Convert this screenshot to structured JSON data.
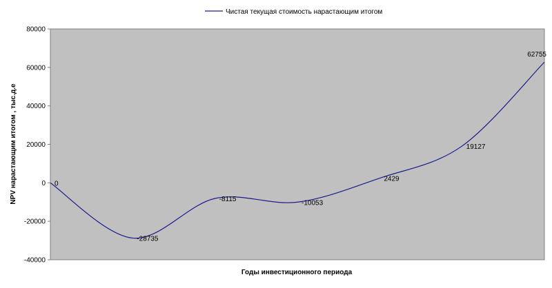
{
  "chart_data": {
    "type": "line",
    "xlabel": "Годы инвестиционного периода",
    "ylabel": "NPV нарастающим итогом , тыс.д.е",
    "ylim": [
      -40000,
      80000
    ],
    "yticks": [
      -40000,
      -20000,
      0,
      20000,
      40000,
      60000,
      80000
    ],
    "ytick_labels": [
      "-40000",
      "-20000",
      "0",
      "20000",
      "40000",
      "60000",
      "80000"
    ],
    "grid": false,
    "legend_position": "top-center",
    "smooth": true,
    "x": [
      0,
      1,
      2,
      3,
      4,
      5,
      6
    ],
    "series": [
      {
        "name": "Чистая текущая стоимость нарастающим итогом",
        "values": [
          0,
          -28735,
          -8115,
          -10053,
          2429,
          19127,
          62755
        ],
        "labels": [
          "0",
          "-28735",
          "-8115",
          "-10053",
          "2429",
          "19127",
          "62755"
        ],
        "color": "#1a1a8c"
      }
    ],
    "colors": {
      "plot_background": "#c0c0c0",
      "page_background": "#ffffff",
      "axis": "#808080"
    }
  }
}
